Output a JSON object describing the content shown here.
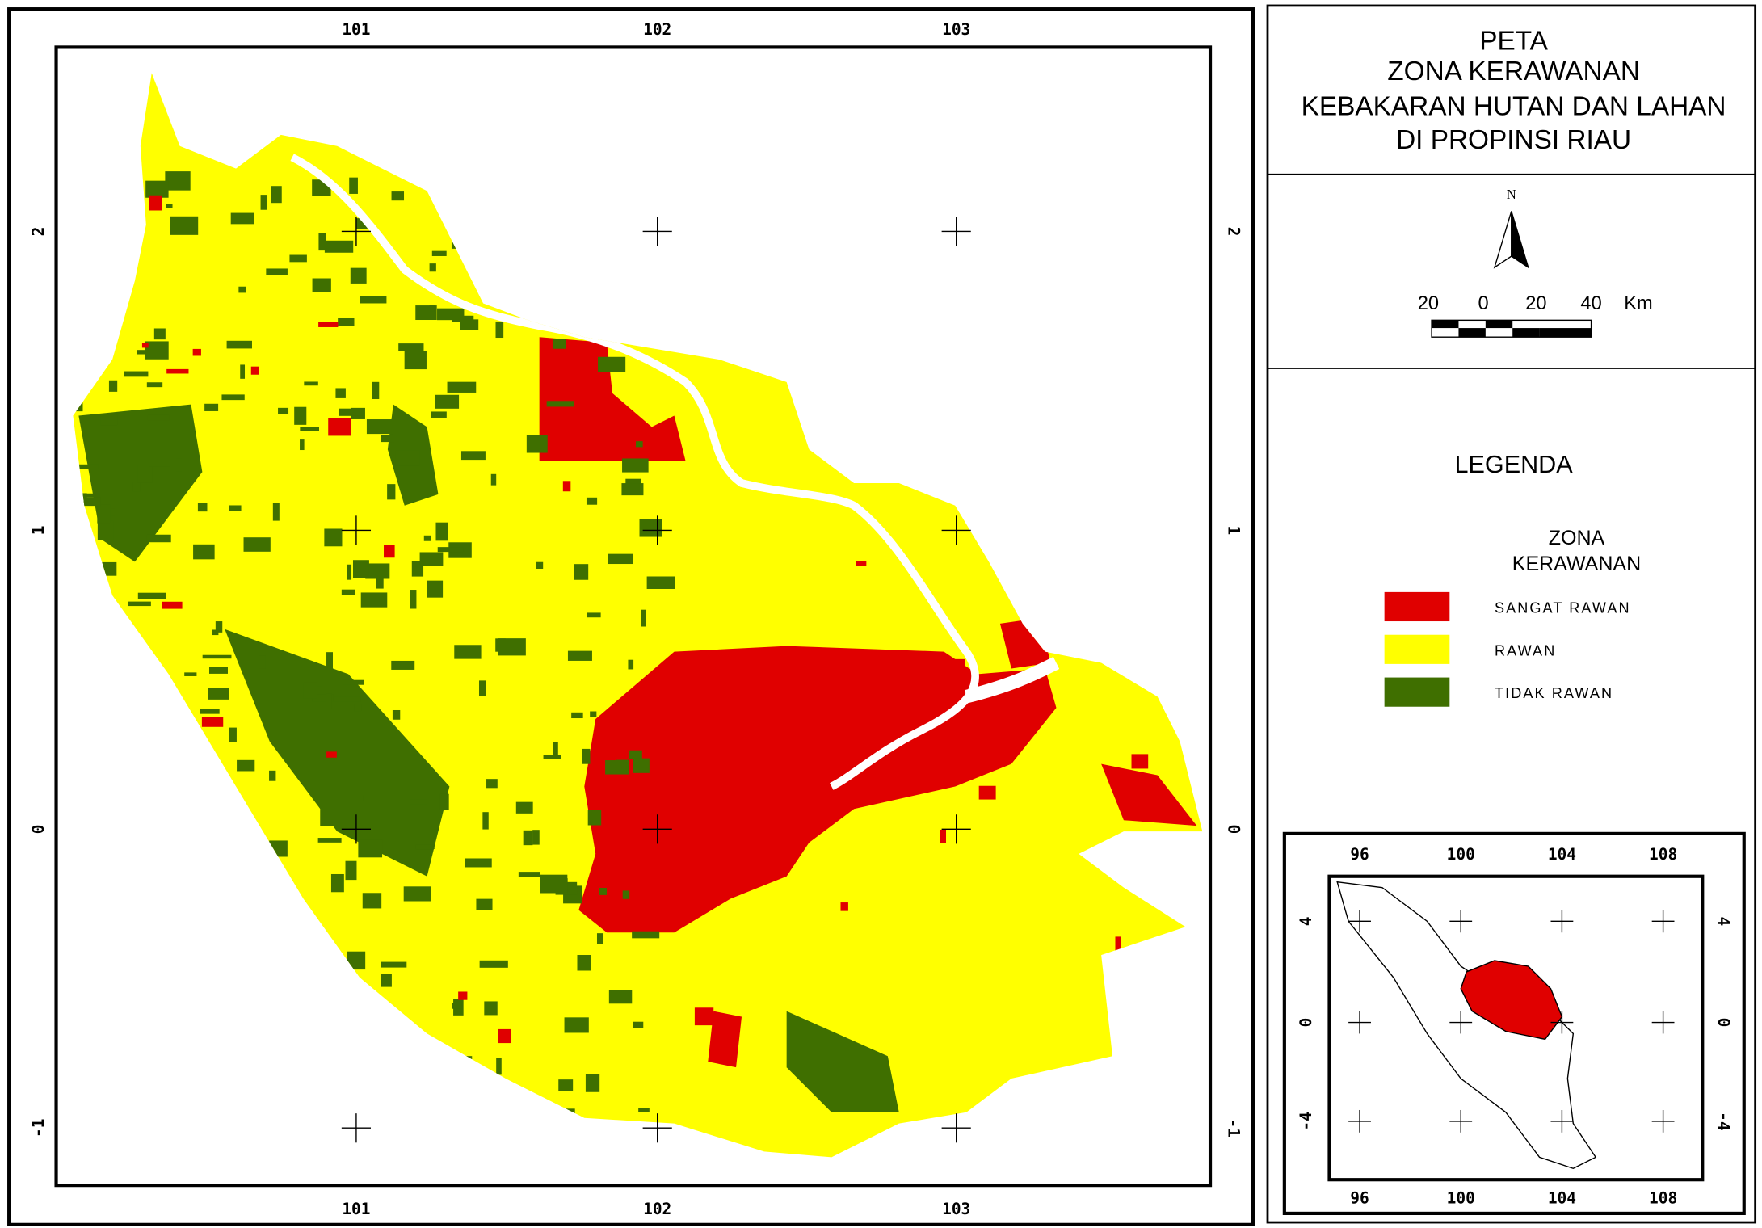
{
  "title_lines": [
    "PETA",
    "ZONA KERAWANAN",
    "KEBAKARAN HUTAN DAN LAHAN",
    "DI PROPINSI RIAU"
  ],
  "north": "N",
  "scale_bar": {
    "labels": [
      "20",
      "0",
      "20",
      "40"
    ],
    "unit": "Km"
  },
  "legend": {
    "title": "LEGENDA",
    "subtitle_lines": [
      "ZONA",
      "KERAWANAN"
    ],
    "items": [
      {
        "label": "SANGAT RAWAN",
        "color": "#e00000"
      },
      {
        "label": "RAWAN",
        "color": "#ffff00"
      },
      {
        "label": "TIDAK RAWAN",
        "color": "#3f6f00"
      }
    ]
  },
  "main_map": {
    "x_labels": [
      "101",
      "102",
      "103"
    ],
    "y_labels": [
      "2",
      "1",
      "0",
      "-1"
    ]
  },
  "inset_map": {
    "x_labels": [
      "96",
      "100",
      "104",
      "108"
    ],
    "y_labels": [
      "4",
      "0",
      "-4"
    ]
  }
}
